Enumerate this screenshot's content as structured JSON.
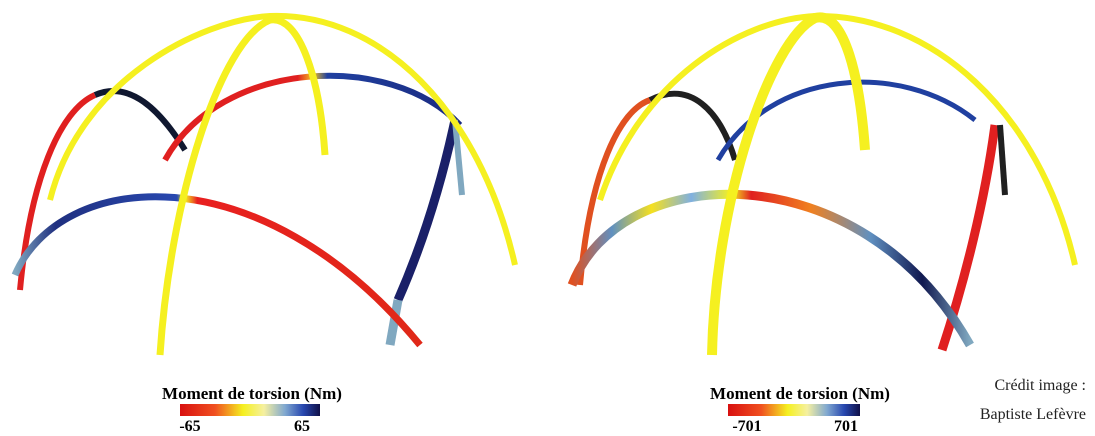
{
  "panels": [
    {
      "colorbar": {
        "title": "Moment de torsion (Nm)",
        "min": "-65",
        "max": "65"
      }
    },
    {
      "colorbar": {
        "title": "Moment de torsion (Nm)",
        "min": "-701",
        "max": "701"
      }
    }
  ],
  "credit": {
    "line1": "Crédit image :",
    "line2": "Baptiste Lefèvre"
  }
}
